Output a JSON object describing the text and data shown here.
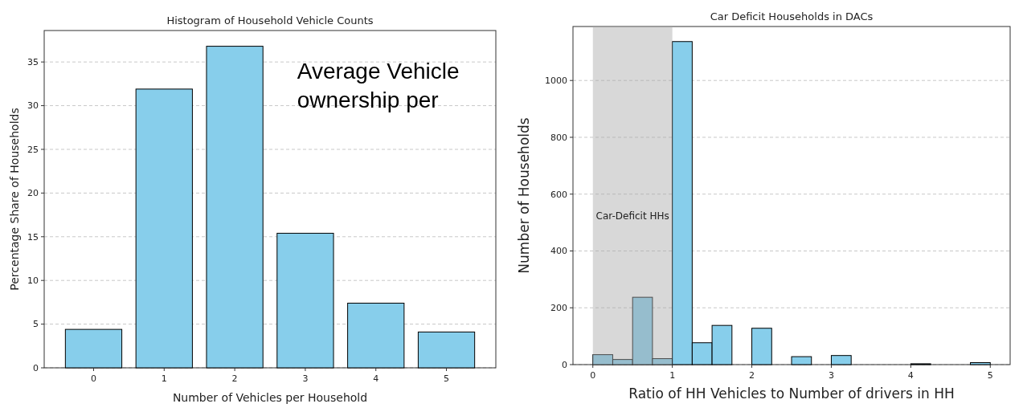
{
  "chart_data": [
    {
      "type": "bar",
      "title": "Histogram of Household Vehicle Counts",
      "xlabel": "Number of Vehicles per Household",
      "ylabel": "Percentage Share of Households",
      "categories": [
        "0",
        "1",
        "2",
        "3",
        "4",
        "5"
      ],
      "values": [
        4.4,
        31.9,
        36.8,
        15.4,
        7.4,
        4.1
      ],
      "color": "#87ceeb",
      "ylim": [
        0,
        38.6
      ],
      "yticks": [
        0,
        5,
        10,
        15,
        20,
        25,
        30,
        35
      ],
      "grid": "y",
      "annotations": [
        "Average Vehicle ownership per"
      ]
    },
    {
      "type": "histogram",
      "title": "Car Deficit Households in DACs",
      "xlabel": "Ratio of HH Vehicles to Number of drivers in HH",
      "ylabel": "Number of Households",
      "bins": [
        0,
        0.25,
        0.5,
        0.75,
        1,
        1.25,
        1.5,
        1.75,
        2,
        2.25,
        2.5,
        2.75,
        3,
        3.25,
        3.5,
        3.75,
        4,
        4.25,
        4.5,
        4.75,
        5
      ],
      "values": [
        35,
        18,
        237,
        21,
        1137,
        77,
        138,
        0,
        128,
        0,
        28,
        0,
        32,
        0,
        0,
        0,
        3,
        0,
        0,
        7
      ],
      "color": "#87ceeb",
      "xlim": [
        -0.25,
        5.25
      ],
      "xticks": [
        0,
        1,
        2,
        3,
        4,
        5
      ],
      "ylim": [
        0,
        1190
      ],
      "yticks": [
        0,
        200,
        400,
        600,
        800,
        1000
      ],
      "grid": "y",
      "bands": [
        {
          "axis": "x",
          "from": 0,
          "to": 1,
          "label": "Car-Deficit HHs",
          "color": "#a9a9a9"
        }
      ]
    }
  ]
}
